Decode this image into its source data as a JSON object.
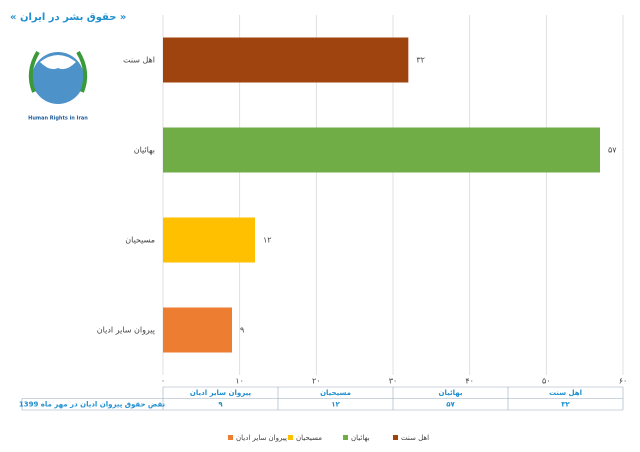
{
  "chart_data": {
    "type": "bar",
    "orientation": "horizontal",
    "title": "« حقوق بشر در ایران »",
    "logo_text": "Human Rights in Iran",
    "categories": [
      "اهل سنت",
      "بهائیان",
      "مسیحیان",
      "پیروان سایر ادیان"
    ],
    "series": [
      {
        "name": "نقض حقوق پیروان ادیان در مهر ماه 1399",
        "values": [
          32,
          57,
          12,
          9
        ],
        "value_labels": [
          "۳۲",
          "۵۷",
          "۱۲",
          "۹"
        ],
        "colors": [
          "#a0440f",
          "#70ad47",
          "#ffc000",
          "#ed7d31"
        ]
      }
    ],
    "xlim": [
      0,
      60
    ],
    "xticks": [
      {
        "value": 0,
        "label": "۰"
      },
      {
        "value": 10,
        "label": "۱۰"
      },
      {
        "value": 20,
        "label": "۲۰"
      },
      {
        "value": 30,
        "label": "۳۰"
      },
      {
        "value": 40,
        "label": "۴۰"
      },
      {
        "value": 50,
        "label": "۵۰"
      },
      {
        "value": 60,
        "label": "۶۰"
      }
    ],
    "grid": true
  }
}
